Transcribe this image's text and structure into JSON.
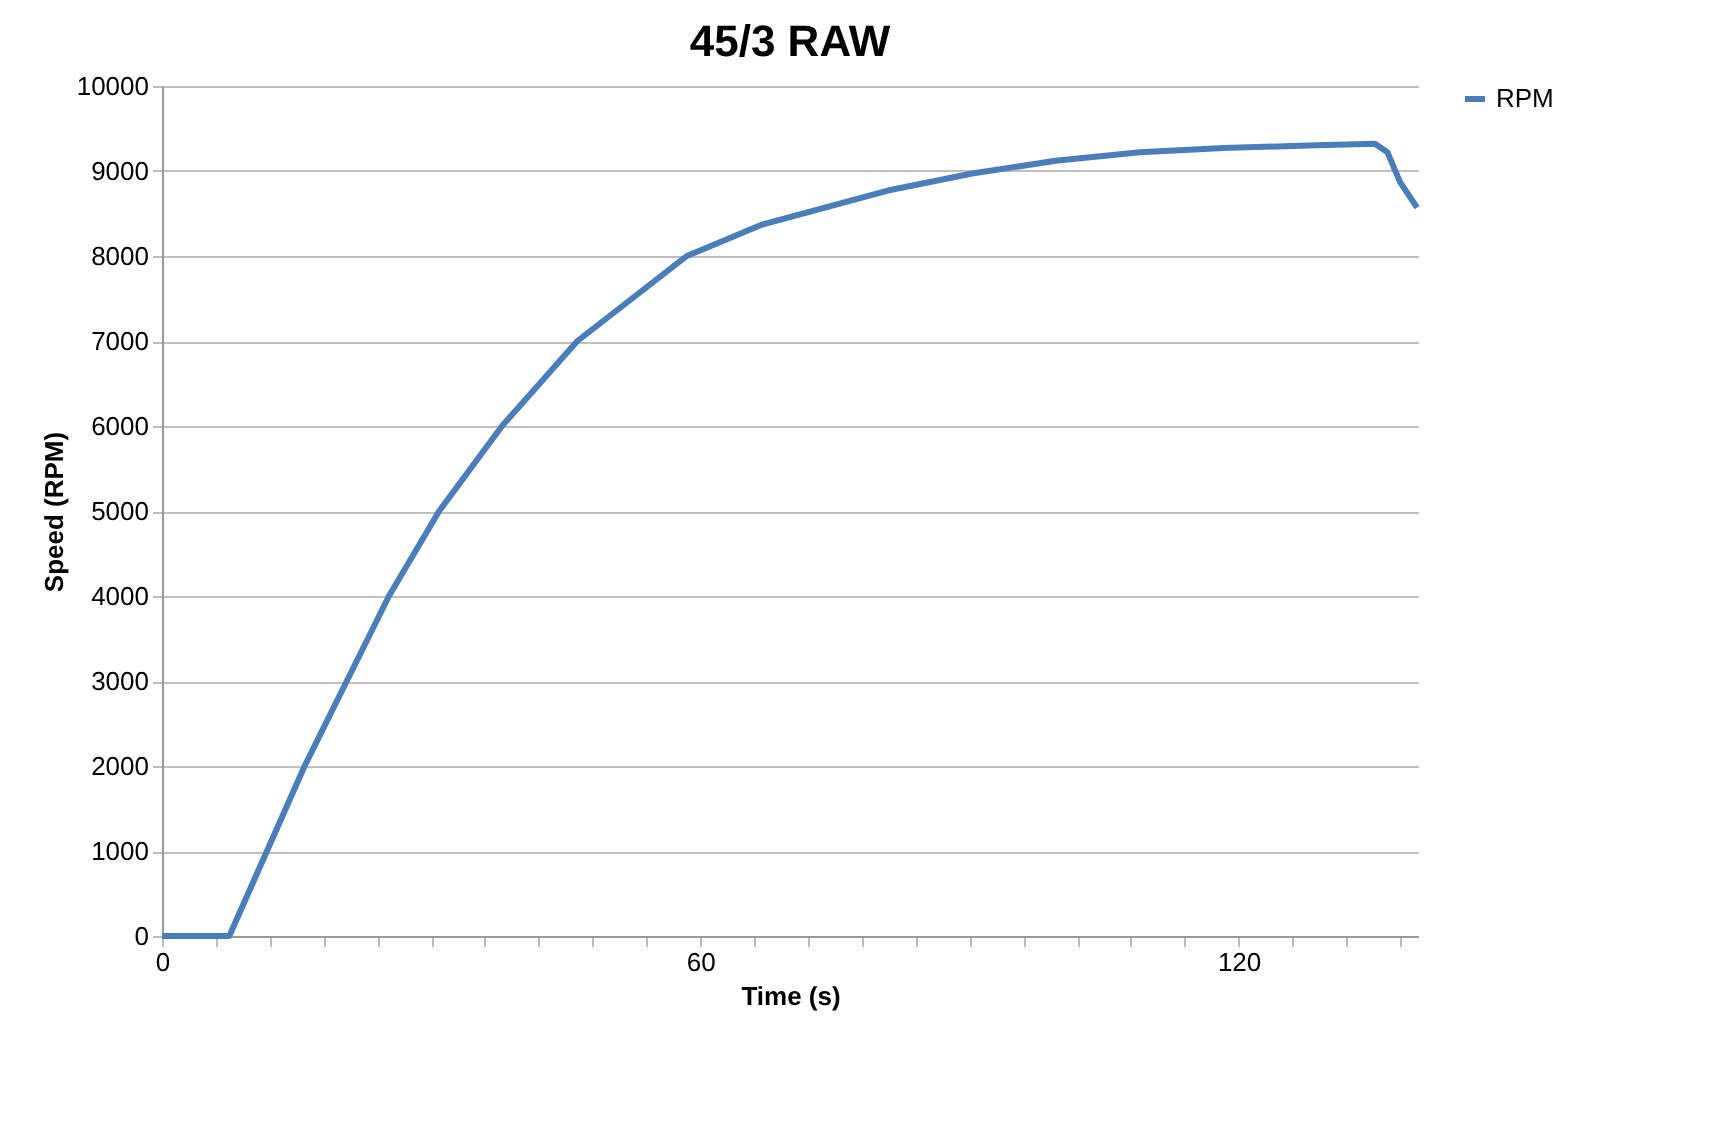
{
  "chart_data": {
    "type": "line",
    "title": "45/3 RAW",
    "xlabel": "Time (s)",
    "ylabel": "Speed (RPM)",
    "x": [
      0,
      7.5,
      11.7,
      15.9,
      20.6,
      25.3,
      30.9,
      37.9,
      46.3,
      58.5,
      66.9,
      80.9,
      90.3,
      99.6,
      109,
      118.3,
      127.7,
      135.2,
      136.6,
      138,
      139.9
    ],
    "series": [
      {
        "name": "RPM",
        "color": "#4a7ebb",
        "values": [
          0,
          0,
          1000,
          2000,
          3000,
          4000,
          5000,
          6000,
          7000,
          8000,
          8370,
          8770,
          8970,
          9120,
          9220,
          9270,
          9300,
          9320,
          9220,
          8870,
          8570
        ]
      }
    ],
    "xlim": [
      0,
      140
    ],
    "xticks": [
      0,
      {
        "value": 6,
        "label": null
      },
      {
        "value": 12,
        "label": null
      },
      {
        "value": 18,
        "label": null
      },
      {
        "value": 24,
        "label": null
      },
      {
        "value": 30,
        "label": null
      },
      {
        "value": 36,
        "label": null
      },
      {
        "value": 42,
        "label": null
      },
      {
        "value": 48,
        "label": null
      },
      {
        "value": 54,
        "label": null
      },
      60,
      {
        "value": 66,
        "label": null
      },
      {
        "value": 72,
        "label": null
      },
      {
        "value": 78,
        "label": null
      },
      {
        "value": 84,
        "label": null
      },
      {
        "value": 90,
        "label": null
      },
      {
        "value": 96,
        "label": null
      },
      {
        "value": 102,
        "label": null
      },
      {
        "value": 108,
        "label": null
      },
      {
        "value": 114,
        "label": null
      },
      120,
      {
        "value": 126,
        "label": null
      },
      {
        "value": 132,
        "label": null
      },
      {
        "value": 138,
        "label": null
      }
    ],
    "ylim": [
      0,
      10000
    ],
    "yticks": [
      0,
      1000,
      2000,
      3000,
      4000,
      5000,
      6000,
      7000,
      8000,
      9000,
      10000
    ],
    "grid": "y",
    "legend": "right",
    "marker": "none",
    "line_style": "solid"
  }
}
